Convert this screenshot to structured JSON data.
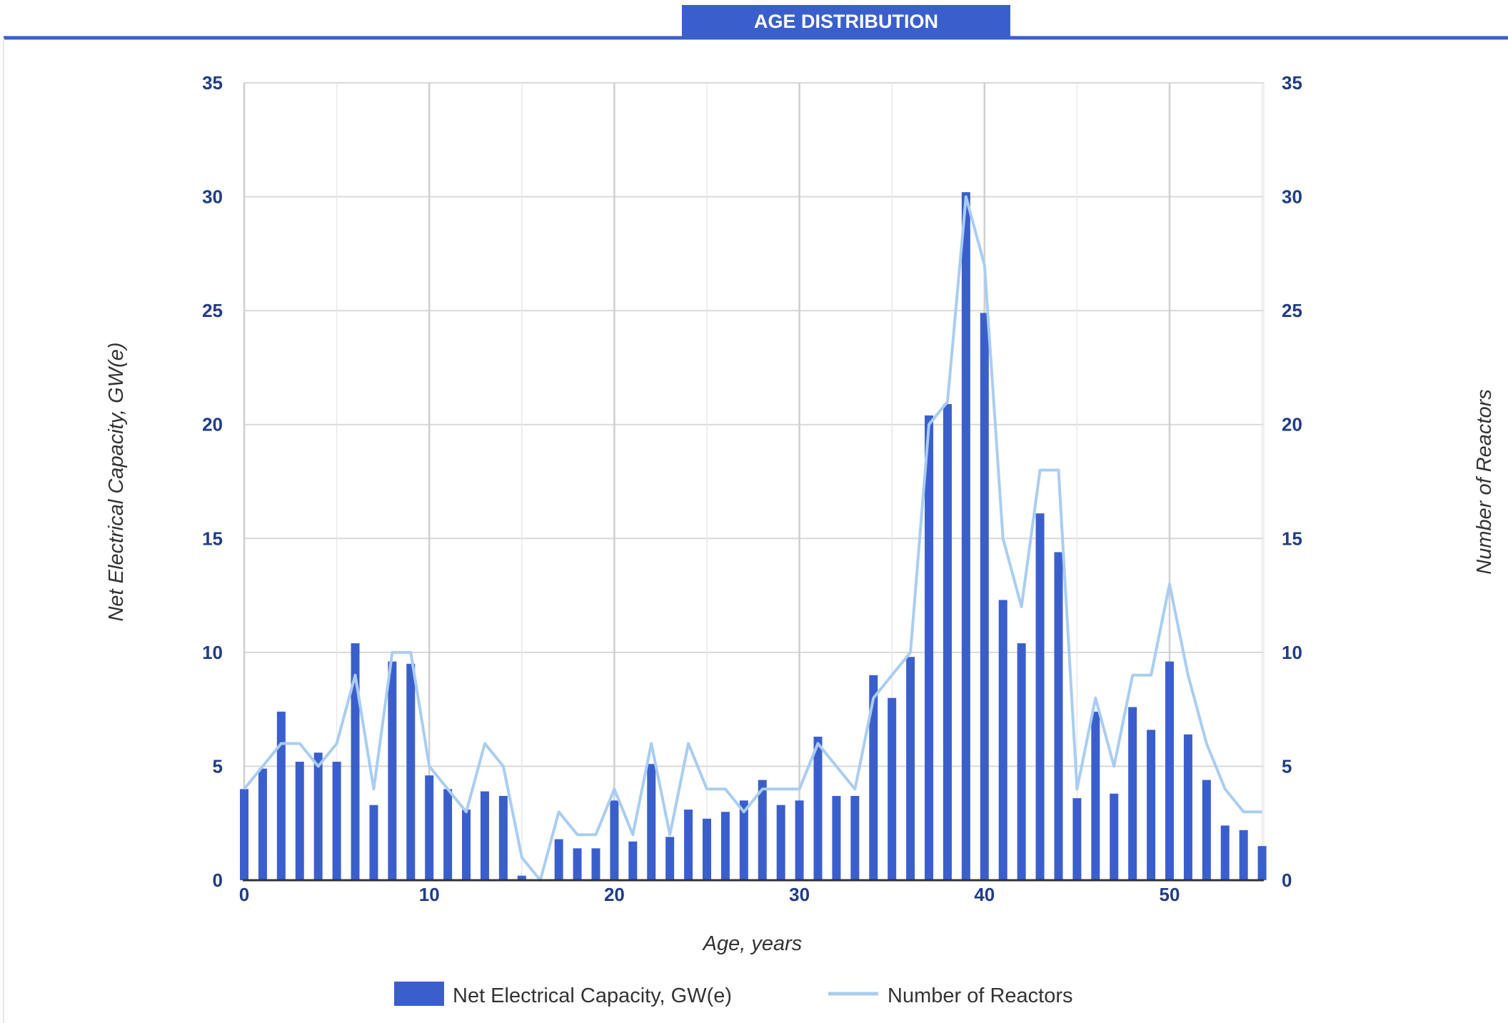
{
  "header": {
    "title": "AGE DISTRIBUTION"
  },
  "colors": {
    "accent": "#3a5fcd",
    "bar": "#3a5fcd",
    "line": "#a9cdf2",
    "grid": "#d9d9d9",
    "tick": "#1f3c88"
  },
  "chart_data": {
    "type": "bar",
    "title": "AGE DISTRIBUTION",
    "xlabel": "Age, years",
    "ylabel": "Net Electrical Capacity, GW(e)",
    "y2label": "Number of Reactors",
    "xlim": [
      0,
      55
    ],
    "ylim": [
      0,
      35
    ],
    "y2lim": [
      0,
      35
    ],
    "x_ticks": [
      0,
      10,
      20,
      30,
      40,
      50
    ],
    "y_ticks": [
      0,
      5,
      10,
      15,
      20,
      25,
      30,
      35
    ],
    "grid": true,
    "legend_position": "bottom",
    "x": [
      0,
      1,
      2,
      3,
      4,
      5,
      6,
      7,
      8,
      9,
      10,
      11,
      12,
      13,
      14,
      15,
      16,
      17,
      18,
      19,
      20,
      21,
      22,
      23,
      24,
      25,
      26,
      27,
      28,
      29,
      30,
      31,
      32,
      33,
      34,
      35,
      36,
      37,
      38,
      39,
      40,
      41,
      42,
      43,
      44,
      45,
      46,
      47,
      48,
      49,
      50,
      51,
      52,
      53,
      54,
      55
    ],
    "series": [
      {
        "name": "Net Electrical Capacity, GW(e)",
        "type": "bar",
        "axis": "left",
        "values": [
          4.0,
          4.9,
          7.4,
          5.2,
          5.6,
          5.2,
          10.4,
          3.3,
          9.6,
          9.5,
          4.6,
          4.0,
          3.1,
          3.9,
          3.7,
          0.2,
          0.0,
          1.8,
          1.4,
          1.4,
          3.5,
          1.7,
          5.1,
          1.9,
          3.1,
          2.7,
          3.0,
          3.5,
          4.4,
          3.3,
          3.5,
          6.3,
          3.7,
          3.7,
          9.0,
          8.0,
          9.8,
          20.4,
          20.9,
          30.2,
          24.9,
          12.3,
          10.4,
          16.1,
          14.4,
          3.6,
          7.4,
          3.8,
          7.6,
          6.6,
          9.6,
          6.4,
          4.4,
          2.4,
          2.2,
          1.5
        ]
      },
      {
        "name": "Number of Reactors",
        "type": "line",
        "axis": "right",
        "values": [
          4,
          5,
          6,
          6,
          5,
          6,
          9,
          4,
          10,
          10,
          5,
          4,
          3,
          6,
          5,
          1,
          0,
          3,
          2,
          2,
          4,
          2,
          6,
          2,
          6,
          4,
          4,
          3,
          4,
          4,
          4,
          6,
          5,
          4,
          8,
          9,
          10,
          20,
          21,
          30,
          27,
          15,
          12,
          18,
          18,
          4,
          8,
          5,
          9,
          9,
          13,
          9,
          6,
          4,
          3,
          3
        ]
      }
    ]
  }
}
